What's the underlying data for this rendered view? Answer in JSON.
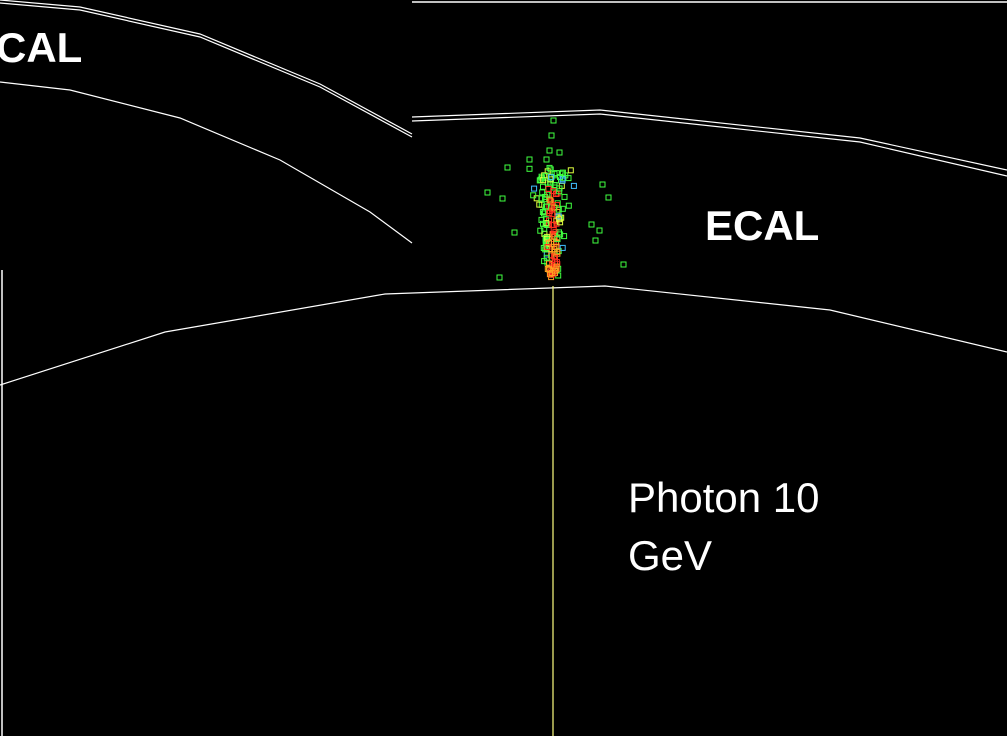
{
  "labels": {
    "inset_label": "CAL",
    "ecal_label": "ECAL",
    "particle_label": [
      "Photon 10",
      "GeV"
    ]
  }
}
